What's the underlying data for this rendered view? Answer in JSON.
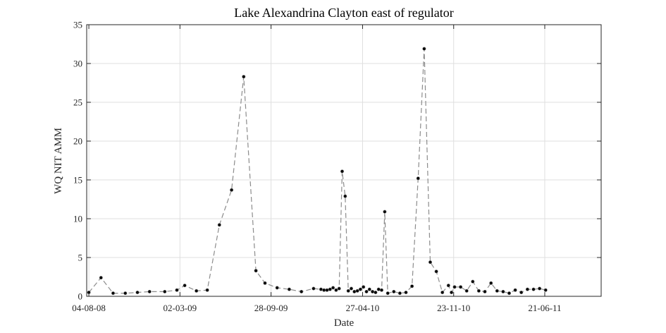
{
  "chart_data": {
    "type": "line",
    "title": "Lake Alexandrina Clayton east of regulator",
    "xlabel": "Date",
    "ylabel": "WQ NIT AMM",
    "xlim": [
      "2008-07-30",
      "2011-10-29"
    ],
    "ylim": [
      0,
      35
    ],
    "y_ticks": [
      0,
      5,
      10,
      15,
      20,
      25,
      30,
      35
    ],
    "x_ticks": [
      {
        "date": "2008-08-04",
        "label": "04-08-08"
      },
      {
        "date": "2009-03-02",
        "label": "02-03-09"
      },
      {
        "date": "2009-09-28",
        "label": "28-09-09"
      },
      {
        "date": "2010-04-27",
        "label": "27-04-10"
      },
      {
        "date": "2010-11-23",
        "label": "23-11-10"
      },
      {
        "date": "2011-06-21",
        "label": "21-06-11"
      }
    ],
    "grid": true,
    "series": [
      {
        "line_color": "#8c8c8c",
        "marker_color": "#000000",
        "x": [
          "2008-08-04",
          "2008-09-01",
          "2008-09-29",
          "2008-10-27",
          "2008-11-24",
          "2008-12-22",
          "2009-01-26",
          "2009-02-23",
          "2009-03-13",
          "2009-04-09",
          "2009-05-04",
          "2009-06-01",
          "2009-06-29",
          "2009-07-27",
          "2009-08-24",
          "2009-09-14",
          "2009-10-12",
          "2009-11-09",
          "2009-12-07",
          "2010-01-04",
          "2010-01-21",
          "2010-01-28",
          "2010-02-04",
          "2010-02-11",
          "2010-02-18",
          "2010-02-25",
          "2010-03-04",
          "2010-03-11",
          "2010-03-18",
          "2010-03-25",
          "2010-04-01",
          "2010-04-08",
          "2010-04-15",
          "2010-04-22",
          "2010-04-29",
          "2010-05-06",
          "2010-05-13",
          "2010-05-20",
          "2010-05-27",
          "2010-06-03",
          "2010-06-10",
          "2010-06-17",
          "2010-06-24",
          "2010-07-08",
          "2010-07-22",
          "2010-08-05",
          "2010-08-19",
          "2010-09-02",
          "2010-09-16",
          "2010-09-30",
          "2010-10-14",
          "2010-10-28",
          "2010-11-11",
          "2010-11-18",
          "2010-11-25",
          "2010-12-09",
          "2010-12-23",
          "2011-01-06",
          "2011-01-20",
          "2011-02-03",
          "2011-02-17",
          "2011-03-03",
          "2011-03-17",
          "2011-03-31",
          "2011-04-14",
          "2011-04-28",
          "2011-05-12",
          "2011-05-26",
          "2011-06-09",
          "2011-06-23"
        ],
        "values": [
          0.5,
          2.4,
          0.4,
          0.4,
          0.5,
          0.6,
          0.6,
          0.8,
          1.4,
          0.7,
          0.8,
          9.2,
          13.7,
          28.3,
          3.3,
          1.7,
          1.1,
          0.9,
          0.6,
          1.0,
          0.9,
          0.8,
          0.8,
          0.9,
          1.1,
          0.8,
          1.0,
          16.1,
          12.9,
          0.7,
          1.0,
          0.6,
          0.7,
          0.9,
          1.2,
          0.6,
          0.9,
          0.6,
          0.5,
          0.9,
          0.8,
          10.9,
          0.4,
          0.6,
          0.4,
          0.5,
          1.3,
          15.2,
          31.9,
          4.4,
          3.2,
          0.5,
          1.4,
          0.5,
          1.2,
          1.2,
          0.7,
          1.9,
          0.7,
          0.6,
          1.7,
          0.7,
          0.6,
          0.4,
          0.8,
          0.5,
          0.9,
          0.9,
          1.0,
          0.8
        ]
      }
    ]
  }
}
